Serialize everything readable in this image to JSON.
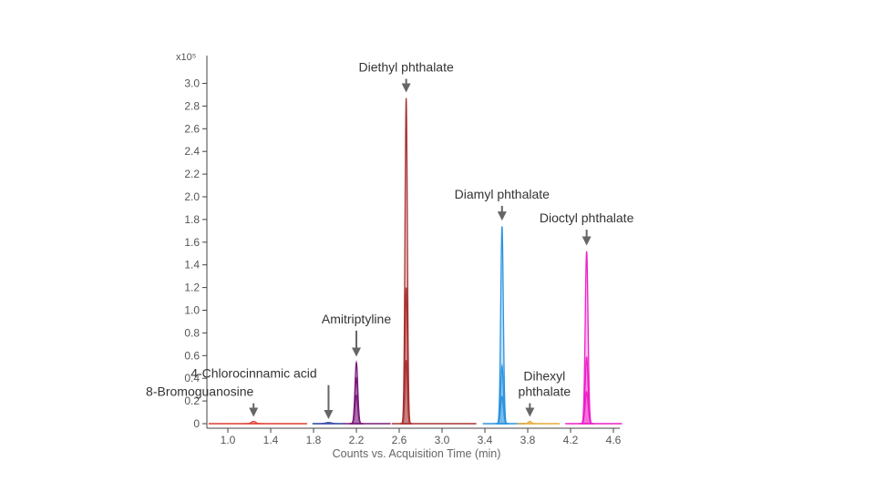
{
  "chart_data": {
    "type": "line",
    "title": "",
    "xlabel": "Counts vs. Acquisition Time (min)",
    "ylabel": "",
    "y_multiplier_label": "x10⁵",
    "xlim": [
      0.8,
      4.68
    ],
    "ylim": [
      0,
      3.1
    ],
    "x_ticks": [
      1.0,
      1.4,
      1.8,
      2.2,
      2.6,
      3.0,
      3.4,
      3.8,
      4.2,
      4.6
    ],
    "x_tick_labels": [
      "1.0",
      "1.4",
      "1.8",
      "2.2",
      "2.6",
      "3.0",
      "3.4",
      "3.8",
      "4.2",
      "4.6"
    ],
    "y_ticks": [
      0,
      0.2,
      0.4,
      0.6,
      0.8,
      1.0,
      1.2,
      1.4,
      1.6,
      1.8,
      2.0,
      2.2,
      2.4,
      2.6,
      2.8,
      3.0
    ],
    "y_tick_labels": [
      "0",
      "0.2",
      "0.4",
      "0.6",
      "0.8",
      "1.0",
      "1.2",
      "1.4",
      "1.6",
      "1.8",
      "2.0",
      "2.2",
      "2.4",
      "2.6",
      "2.8",
      "3.0"
    ],
    "grid": false,
    "series": [
      {
        "color": "#e03c31",
        "segment": [
          0.82,
          1.74
        ],
        "peaks": [
          {
            "x": 1.24,
            "y": 0.02,
            "width": 0.02
          }
        ]
      },
      {
        "color": "#3a4fa8",
        "segment": [
          1.79,
          2.08
        ],
        "peaks": [
          {
            "x": 1.94,
            "y": 0.01,
            "width": 0.03
          }
        ]
      },
      {
        "color": "#7b1a7b",
        "segment": [
          2.08,
          2.52
        ],
        "peaks": [
          {
            "x": 2.2,
            "y": 0.54,
            "width": 0.013
          },
          {
            "x": 2.2,
            "y": 0.4,
            "width": 0.013
          },
          {
            "x": 2.2,
            "y": 0.25,
            "width": 0.013
          }
        ]
      },
      {
        "color": "#a83232",
        "segment": [
          2.53,
          3.32
        ],
        "peaks": [
          {
            "x": 2.665,
            "y": 2.87,
            "width": 0.011
          },
          {
            "x": 2.665,
            "y": 1.2,
            "width": 0.011
          },
          {
            "x": 2.665,
            "y": 0.56,
            "width": 0.011
          }
        ]
      },
      {
        "color": "#2a93e0",
        "segment": [
          3.38,
          3.78
        ],
        "peaks": [
          {
            "x": 3.56,
            "y": 1.74,
            "width": 0.012
          },
          {
            "x": 3.56,
            "y": 0.51,
            "width": 0.012
          },
          {
            "x": 3.56,
            "y": 0.24,
            "width": 0.013
          }
        ]
      },
      {
        "color": "#e8a83a",
        "segment": [
          3.7,
          4.1
        ],
        "peaks": [
          {
            "x": 3.82,
            "y": 0.02,
            "width": 0.015
          }
        ]
      },
      {
        "color": "#ee1fc8",
        "segment": [
          4.15,
          4.68
        ],
        "peaks": [
          {
            "x": 4.35,
            "y": 1.52,
            "width": 0.013
          },
          {
            "x": 4.35,
            "y": 0.59,
            "width": 0.013
          },
          {
            "x": 4.35,
            "y": 0.28,
            "width": 0.014
          }
        ]
      }
    ],
    "annotations": [
      {
        "lines": [
          "Diethyl phthalate"
        ],
        "x": 2.665,
        "arrow_from": 3.04,
        "arrow_to": 2.92
      },
      {
        "lines": [
          "Diamyl phthalate"
        ],
        "x": 3.56,
        "arrow_from": 1.92,
        "arrow_to": 1.79
      },
      {
        "lines": [
          "Dioctyl phthalate"
        ],
        "x": 4.35,
        "arrow_from": 1.71,
        "arrow_to": 1.57
      },
      {
        "lines": [
          "Amitriptyline"
        ],
        "x": 2.2,
        "arrow_from": 0.82,
        "arrow_to": 0.59
      },
      {
        "lines": [
          "Dihexyl",
          "phthalate"
        ],
        "x": 3.82,
        "arrow_from": 0.18,
        "arrow_to": 0.06
      },
      {
        "lines": [
          "4-Chlorocinnamic acid"
        ],
        "x": 1.94,
        "arrow_from": 0.34,
        "arrow_to": 0.04
      },
      {
        "lines": [
          "8-Bromoguanosine"
        ],
        "x": 1.24,
        "arrow_from": 0.18,
        "arrow_to": 0.06
      }
    ]
  }
}
